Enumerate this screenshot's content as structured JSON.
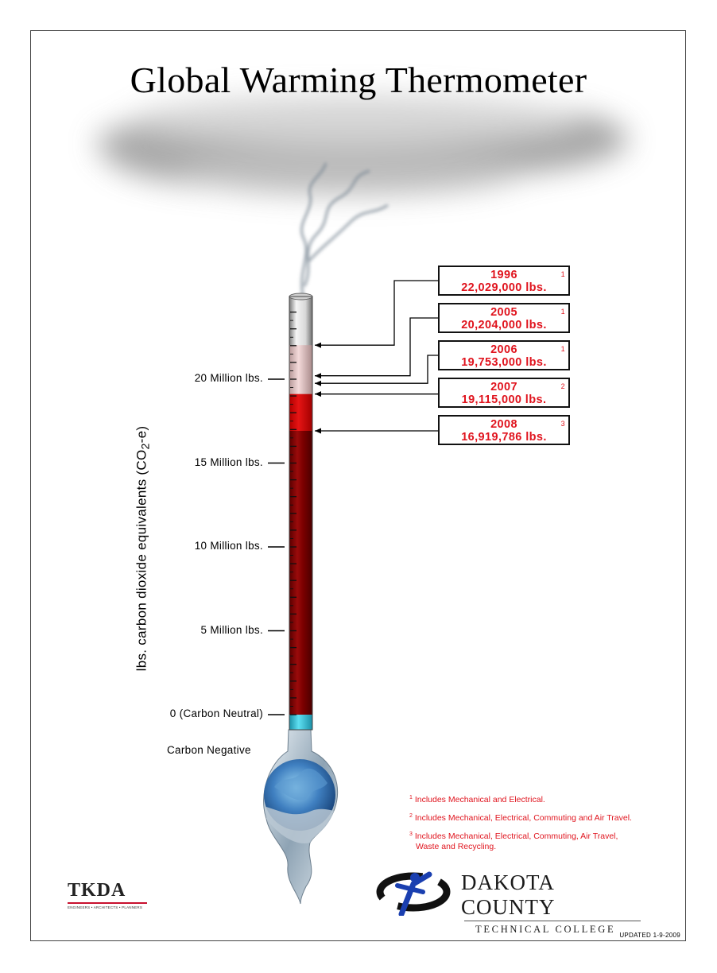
{
  "title": "Global Warming Thermometer",
  "chart_data": {
    "type": "thermometer",
    "title": "Global Warming Thermometer",
    "ylabel_prefix": "lbs. carbon dioxide equivalents  (CO",
    "ylabel_sub": "2",
    "ylabel_suffix": "-e)",
    "ylim": [
      0,
      24000000
    ],
    "ticks": [
      {
        "value": 20000000,
        "label": "20 Million lbs."
      },
      {
        "value": 15000000,
        "label": "15 Million lbs."
      },
      {
        "value": 10000000,
        "label": "10 Million lbs."
      },
      {
        "value": 5000000,
        "label": "5 Million lbs."
      },
      {
        "value": 0,
        "label": "0 (Carbon Neutral)"
      }
    ],
    "below_zero_label": "Carbon Negative",
    "current_value": 16919786,
    "points": [
      {
        "year": "1996",
        "value": 22029000,
        "label": "22,029,000 lbs.",
        "note": "1"
      },
      {
        "year": "2005",
        "value": 20204000,
        "label": "20,204,000 lbs.",
        "note": "1"
      },
      {
        "year": "2006",
        "value": 19753000,
        "label": "19,753,000 lbs.",
        "note": "1"
      },
      {
        "year": "2007",
        "value": 19115000,
        "label": "19,115,000 lbs.",
        "note": "2"
      },
      {
        "year": "2008",
        "value": 16919786,
        "label": "16,919,786 lbs.",
        "note": "3"
      }
    ],
    "colors": {
      "fill": "#8e0000",
      "fill_light": "#d40f0f",
      "cold": "#3fc6dc",
      "text_red": "#e0141e"
    }
  },
  "footnotes": [
    {
      "num": "1",
      "text": "Includes Mechanical and Electrical."
    },
    {
      "num": "2",
      "text": "Includes Mechanical, Electrical, Commuting and Air Travel."
    },
    {
      "num": "3",
      "text": "Includes Mechanical, Electrical, Commuting, Air Travel,",
      "text2": "Waste and Recycling."
    }
  ],
  "updated": "UPDATED 1-9-2009",
  "logos": {
    "tkda_name": "TKDA",
    "tkda_sub": "ENGINEERS • ARCHITECTS • PLANNERS",
    "dctc_line1": "DAKOTA COUNTY",
    "dctc_line2": "TECHNICAL COLLEGE"
  }
}
